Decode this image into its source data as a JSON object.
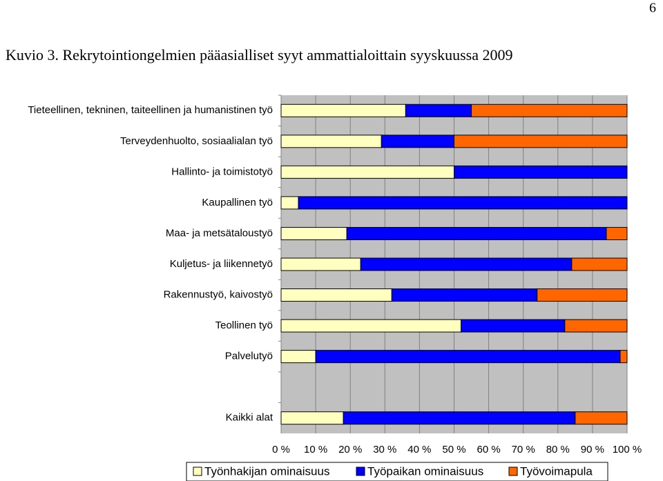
{
  "page_number": 6,
  "chart_data": {
    "type": "stacked-barh",
    "title": "Kuvio 3.  Rekrytointiongelmien pääasialliset syyt ammattialoittain syyskuussa 2009",
    "categories": [
      "Tieteellinen, tekninen, taiteellinen ja humanistinen työ",
      "Terveydenhuolto, sosiaalialan työ",
      "Hallinto- ja toimistotyö",
      "Kaupallinen työ",
      "Maa- ja metsätaloustyö",
      "Kuljetus- ja liikennetyö",
      "Rakennustyö, kaivostyö",
      "Teollinen työ",
      "Palvelutyö",
      null,
      "Kaikki alat"
    ],
    "series": [
      {
        "name": "Työnhakijan ominaisuus",
        "color": "#ffffc0",
        "values": [
          36,
          29,
          50,
          5,
          19,
          23,
          32,
          52,
          10,
          null,
          18
        ]
      },
      {
        "name": "Työpaikan ominaisuus",
        "color": "#0000ff",
        "values": [
          19,
          21,
          50,
          95,
          75,
          61,
          42,
          30,
          88,
          null,
          67
        ]
      },
      {
        "name": "Työvoimapula",
        "color": "#ff6600",
        "values": [
          45,
          50,
          0,
          0,
          6,
          16,
          26,
          18,
          2,
          null,
          15
        ]
      }
    ],
    "xlim": [
      0,
      100
    ],
    "xticks": [
      {
        "value": 0,
        "label": "0 %"
      },
      {
        "value": 10,
        "label": "10 %"
      },
      {
        "value": 20,
        "label": "20 %"
      },
      {
        "value": 30,
        "label": "30 %"
      },
      {
        "value": 40,
        "label": "40 %"
      },
      {
        "value": 50,
        "label": "50 %"
      },
      {
        "value": 60,
        "label": "60 %"
      },
      {
        "value": 70,
        "label": "70 %"
      },
      {
        "value": 80,
        "label": "80 %"
      },
      {
        "value": 90,
        "label": "90 %"
      },
      {
        "value": 100,
        "label": "100 %"
      }
    ],
    "grid": true,
    "plot_background": "#c0c0c0",
    "legend": "bottom"
  }
}
